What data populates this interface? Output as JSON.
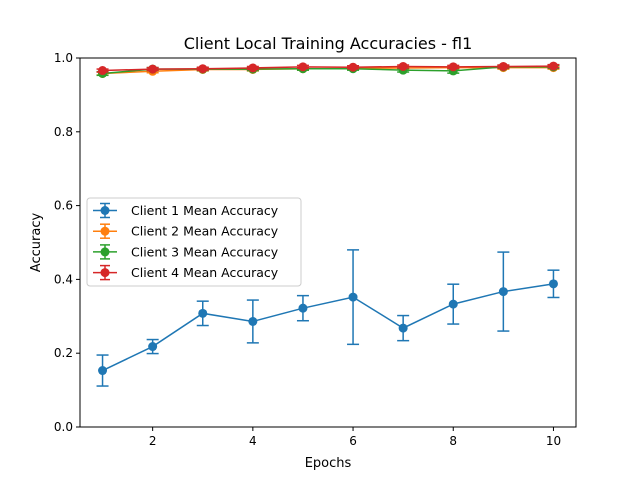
{
  "chart_data": {
    "type": "line",
    "title": "Client Local Training Accuracies - fl1",
    "xlabel": "Epochs",
    "ylabel": "Accuracy",
    "xlim": [
      0.55,
      10.45
    ],
    "ylim": [
      0.0,
      1.0
    ],
    "xticks": [
      2,
      4,
      6,
      8,
      10
    ],
    "xtick_labels": [
      "2",
      "4",
      "6",
      "8",
      "10"
    ],
    "yticks": [
      0.0,
      0.2,
      0.4,
      0.6,
      0.8,
      1.0
    ],
    "ytick_labels": [
      "0.0",
      "0.2",
      "0.4",
      "0.6",
      "0.8",
      "1.0"
    ],
    "grid": false,
    "legend_position": "center-left",
    "x": [
      1,
      2,
      3,
      4,
      5,
      6,
      7,
      8,
      9,
      10
    ],
    "series": [
      {
        "name": "Client 1 Mean Accuracy",
        "color": "#1f77b4",
        "values": [
          0.153,
          0.218,
          0.308,
          0.286,
          0.322,
          0.352,
          0.268,
          0.333,
          0.367,
          0.388
        ],
        "errors": [
          0.042,
          0.019,
          0.033,
          0.058,
          0.034,
          0.128,
          0.034,
          0.054,
          0.107,
          0.037
        ]
      },
      {
        "name": "Client 2 Mean Accuracy",
        "color": "#ff7f0e",
        "values": [
          0.958,
          0.964,
          0.969,
          0.969,
          0.971,
          0.972,
          0.973,
          0.974,
          0.974,
          0.974
        ],
        "errors": [
          0.004,
          0.004,
          0.004,
          0.004,
          0.004,
          0.004,
          0.004,
          0.004,
          0.004,
          0.004
        ]
      },
      {
        "name": "Client 3 Mean Accuracy",
        "color": "#2ca02c",
        "values": [
          0.958,
          0.97,
          0.97,
          0.97,
          0.971,
          0.971,
          0.967,
          0.965,
          0.976,
          0.976
        ],
        "errors": [
          0.005,
          0.004,
          0.004,
          0.004,
          0.004,
          0.004,
          0.005,
          0.006,
          0.004,
          0.004
        ]
      },
      {
        "name": "Client 4 Mean Accuracy",
        "color": "#d62728",
        "values": [
          0.966,
          0.97,
          0.971,
          0.973,
          0.976,
          0.975,
          0.977,
          0.976,
          0.977,
          0.978
        ],
        "errors": [
          0.004,
          0.004,
          0.004,
          0.004,
          0.004,
          0.004,
          0.004,
          0.004,
          0.004,
          0.004
        ]
      }
    ]
  }
}
